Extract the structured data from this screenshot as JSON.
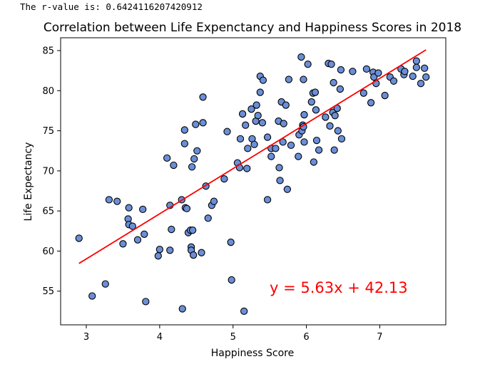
{
  "output_text": "The r-value is: 0.6424116207420912",
  "chart_data": {
    "type": "scatter",
    "title": "Correlation between Life Expenctancy and Happiness Scores in 2018",
    "xlabel": "Happiness Score",
    "ylabel": "Life Expectancy",
    "xlim": [
      2.65,
      7.9
    ],
    "ylim": [
      50.8,
      86.6
    ],
    "xticks": [
      3,
      4,
      5,
      6,
      7
    ],
    "yticks": [
      55,
      60,
      65,
      70,
      75,
      80,
      85
    ],
    "grid": false,
    "marker_color": "#6a8fd8",
    "marker_edge_color": "#000000",
    "regression": {
      "slope": 5.63,
      "intercept": 42.13,
      "x_range": [
        2.9,
        7.63
      ],
      "color": "#ff0000",
      "equation": "y = 5.63x + 42.13"
    },
    "points": [
      [
        2.9,
        61.6
      ],
      [
        3.08,
        54.4
      ],
      [
        3.26,
        55.9
      ],
      [
        3.31,
        66.4
      ],
      [
        3.42,
        66.2
      ],
      [
        3.5,
        60.9
      ],
      [
        3.58,
        65.4
      ],
      [
        3.57,
        64.0
      ],
      [
        3.58,
        63.3
      ],
      [
        3.63,
        63.1
      ],
      [
        3.7,
        61.4
      ],
      [
        3.77,
        65.2
      ],
      [
        3.79,
        62.1
      ],
      [
        3.81,
        53.7
      ],
      [
        3.98,
        59.4
      ],
      [
        4.0,
        60.2
      ],
      [
        4.1,
        71.6
      ],
      [
        4.14,
        65.7
      ],
      [
        4.14,
        60.1
      ],
      [
        4.16,
        62.7
      ],
      [
        4.19,
        70.7
      ],
      [
        4.3,
        66.4
      ],
      [
        4.31,
        52.8
      ],
      [
        4.34,
        75.1
      ],
      [
        4.34,
        73.4
      ],
      [
        4.35,
        65.4
      ],
      [
        4.37,
        65.3
      ],
      [
        4.39,
        62.3
      ],
      [
        4.42,
        62.6
      ],
      [
        4.43,
        60.5
      ],
      [
        4.43,
        60.1
      ],
      [
        4.44,
        70.5
      ],
      [
        4.45,
        62.6
      ],
      [
        4.46,
        59.5
      ],
      [
        4.47,
        71.5
      ],
      [
        4.49,
        75.8
      ],
      [
        4.51,
        72.5
      ],
      [
        4.57,
        59.8
      ],
      [
        4.59,
        76.0
      ],
      [
        4.59,
        79.2
      ],
      [
        4.63,
        68.1
      ],
      [
        4.66,
        64.1
      ],
      [
        4.71,
        65.7
      ],
      [
        4.74,
        66.2
      ],
      [
        4.88,
        69.0
      ],
      [
        4.92,
        74.9
      ],
      [
        4.97,
        61.1
      ],
      [
        4.98,
        56.4
      ],
      [
        5.06,
        71.0
      ],
      [
        5.09,
        70.4
      ],
      [
        5.1,
        74.0
      ],
      [
        5.13,
        77.1
      ],
      [
        5.15,
        52.5
      ],
      [
        5.17,
        75.7
      ],
      [
        5.19,
        70.3
      ],
      [
        5.2,
        72.8
      ],
      [
        5.25,
        77.7
      ],
      [
        5.26,
        74.0
      ],
      [
        5.29,
        73.3
      ],
      [
        5.31,
        76.2
      ],
      [
        5.32,
        78.2
      ],
      [
        5.34,
        76.9
      ],
      [
        5.37,
        79.8
      ],
      [
        5.37,
        81.8
      ],
      [
        5.4,
        76.0
      ],
      [
        5.41,
        81.3
      ],
      [
        5.47,
        66.4
      ],
      [
        5.47,
        74.2
      ],
      [
        5.52,
        72.8
      ],
      [
        5.52,
        71.8
      ],
      [
        5.58,
        72.8
      ],
      [
        5.62,
        76.2
      ],
      [
        5.63,
        70.4
      ],
      [
        5.64,
        68.8
      ],
      [
        5.66,
        78.6
      ],
      [
        5.68,
        73.6
      ],
      [
        5.69,
        75.9
      ],
      [
        5.72,
        78.2
      ],
      [
        5.74,
        67.7
      ],
      [
        5.76,
        81.4
      ],
      [
        5.79,
        73.2
      ],
      [
        5.89,
        71.8
      ],
      [
        5.9,
        74.5
      ],
      [
        5.93,
        84.2
      ],
      [
        5.94,
        75.0
      ],
      [
        5.95,
        75.7
      ],
      [
        5.96,
        81.4
      ],
      [
        5.96,
        75.5
      ],
      [
        5.97,
        73.6
      ],
      [
        5.97,
        77.0
      ],
      [
        6.02,
        83.3
      ],
      [
        6.07,
        78.6
      ],
      [
        6.09,
        79.7
      ],
      [
        6.1,
        71.1
      ],
      [
        6.12,
        79.8
      ],
      [
        6.13,
        77.6
      ],
      [
        6.14,
        73.8
      ],
      [
        6.17,
        72.6
      ],
      [
        6.26,
        76.7
      ],
      [
        6.3,
        83.4
      ],
      [
        6.32,
        75.6
      ],
      [
        6.34,
        83.3
      ],
      [
        6.36,
        77.3
      ],
      [
        6.37,
        81.0
      ],
      [
        6.38,
        72.6
      ],
      [
        6.39,
        76.9
      ],
      [
        6.42,
        77.8
      ],
      [
        6.43,
        75.0
      ],
      [
        6.46,
        80.2
      ],
      [
        6.47,
        82.6
      ],
      [
        6.48,
        74.0
      ],
      [
        6.63,
        82.4
      ],
      [
        6.78,
        79.7
      ],
      [
        6.82,
        82.7
      ],
      [
        6.88,
        78.5
      ],
      [
        6.91,
        82.3
      ],
      [
        6.92,
        81.7
      ],
      [
        6.95,
        80.9
      ],
      [
        6.98,
        82.2
      ],
      [
        7.07,
        79.4
      ],
      [
        7.14,
        81.7
      ],
      [
        7.19,
        81.2
      ],
      [
        7.29,
        82.7
      ],
      [
        7.33,
        82.0
      ],
      [
        7.34,
        82.4
      ],
      [
        7.45,
        81.8
      ],
      [
        7.5,
        83.7
      ],
      [
        7.5,
        82.9
      ],
      [
        7.56,
        80.9
      ],
      [
        7.61,
        82.8
      ],
      [
        7.63,
        81.7
      ]
    ]
  }
}
